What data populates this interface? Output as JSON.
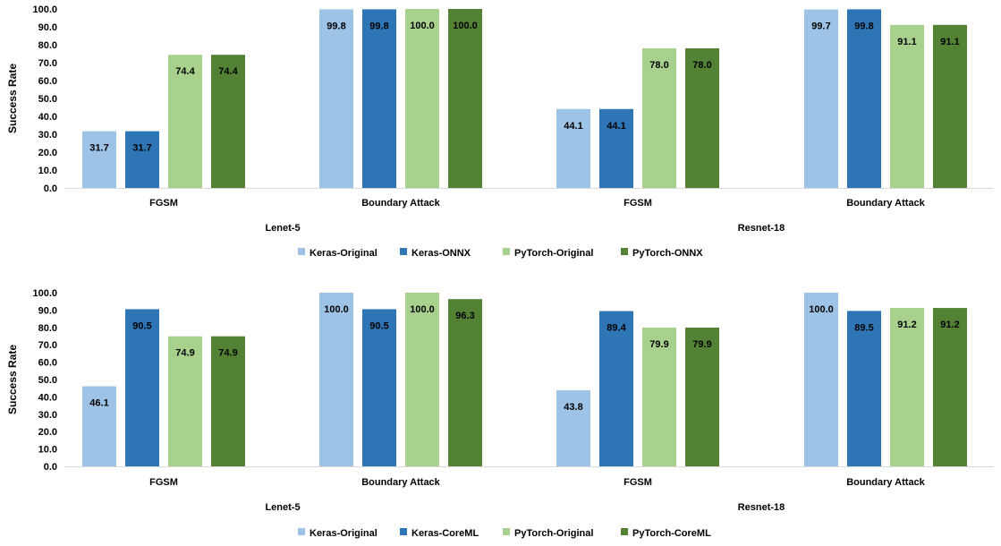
{
  "chart_data": [
    {
      "type": "bar",
      "title": "",
      "ylabel": "Success Rate",
      "ylim": [
        0,
        100
      ],
      "yticks": [
        "0.0",
        "10.0",
        "20.0",
        "30.0",
        "40.0",
        "50.0",
        "60.0",
        "70.0",
        "80.0",
        "90.0",
        "100.0"
      ],
      "groups": [
        {
          "model": "Lenet-5",
          "attack": "FGSM"
        },
        {
          "model": "Lenet-5",
          "attack": "Boundary Attack"
        },
        {
          "model": "Resnet-18",
          "attack": "FGSM"
        },
        {
          "model": "Resnet-18",
          "attack": "Boundary Attack"
        }
      ],
      "model_labels": [
        "Lenet-5",
        "Resnet-18"
      ],
      "series": [
        {
          "name": "Keras-Original",
          "color": "#9dc3e6",
          "values": [
            31.7,
            99.8,
            44.1,
            99.7
          ]
        },
        {
          "name": "Keras-ONNX",
          "color": "#2e75b6",
          "values": [
            31.7,
            99.8,
            44.1,
            99.8
          ]
        },
        {
          "name": "PyTorch-Original",
          "color": "#a9d18e",
          "values": [
            74.4,
            100.0,
            78.0,
            91.1
          ]
        },
        {
          "name": "PyTorch-ONNX",
          "color": "#548235",
          "values": [
            74.4,
            100.0,
            78.0,
            91.1
          ]
        }
      ],
      "legend_position": "bottom",
      "grid": false
    },
    {
      "type": "bar",
      "title": "",
      "ylabel": "Success Rate",
      "ylim": [
        0,
        100
      ],
      "yticks": [
        "0.0",
        "10.0",
        "20.0",
        "30.0",
        "40.0",
        "50.0",
        "60.0",
        "70.0",
        "80.0",
        "90.0",
        "100.0"
      ],
      "groups": [
        {
          "model": "Lenet-5",
          "attack": "FGSM"
        },
        {
          "model": "Lenet-5",
          "attack": "Boundary Attack"
        },
        {
          "model": "Resnet-18",
          "attack": "FGSM"
        },
        {
          "model": "Resnet-18",
          "attack": "Boundary Attack"
        }
      ],
      "model_labels": [
        "Lenet-5",
        "Resnet-18"
      ],
      "series": [
        {
          "name": "Keras-Original",
          "color": "#9dc3e6",
          "values": [
            46.1,
            100.0,
            43.8,
            100.0
          ]
        },
        {
          "name": "Keras-CoreML",
          "color": "#2e75b6",
          "values": [
            90.5,
            90.5,
            89.4,
            89.5
          ]
        },
        {
          "name": "PyTorch-Original",
          "color": "#a9d18e",
          "values": [
            74.9,
            100.0,
            79.9,
            91.2
          ]
        },
        {
          "name": "PyTorch-CoreML",
          "color": "#548235",
          "values": [
            74.9,
            96.3,
            79.9,
            91.2
          ]
        }
      ],
      "legend_position": "bottom",
      "grid": false
    }
  ]
}
